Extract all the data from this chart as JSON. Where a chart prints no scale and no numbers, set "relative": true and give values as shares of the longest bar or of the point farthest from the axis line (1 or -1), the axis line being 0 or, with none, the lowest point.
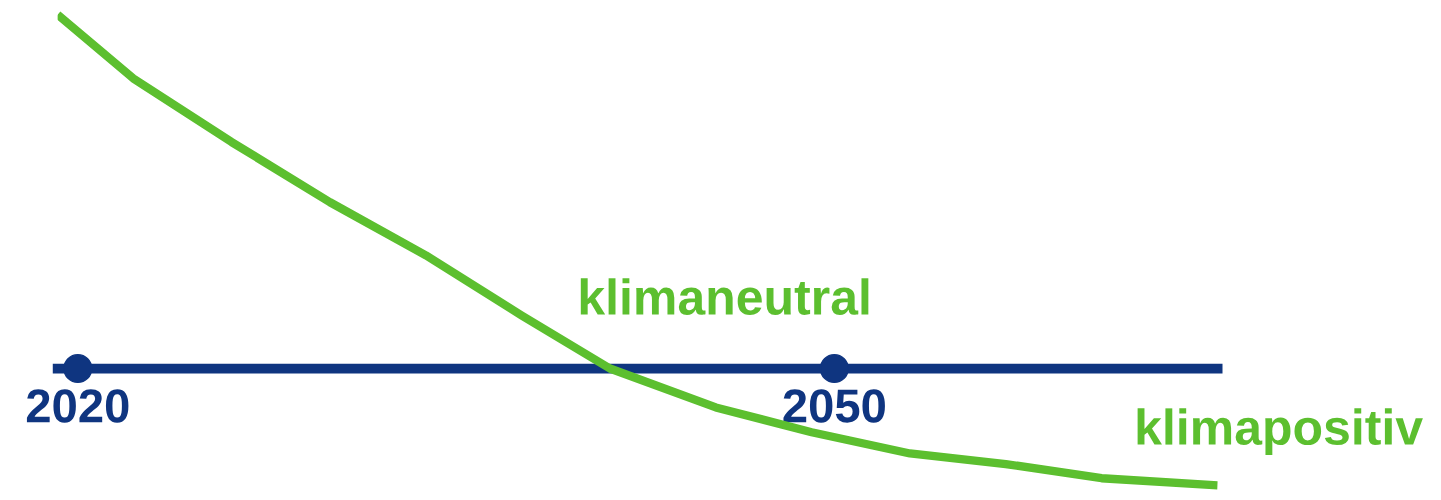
{
  "chart_data": {
    "type": "line",
    "relative": true,
    "x": [
      2019.2,
      2022.2,
      2026.1,
      2030.0,
      2033.8,
      2037.6,
      2041.1,
      2045.3,
      2049.1,
      2053.0,
      2056.8,
      2060.6,
      2065.2
    ],
    "series": [
      {
        "color": "#5cbf2f",
        "values": [
          1.0,
          0.82,
          0.64,
          0.47,
          0.32,
          0.15,
          0.0,
          -0.11,
          -0.18,
          -0.24,
          -0.27,
          -0.31,
          -0.33
        ]
      },
      {
        "type": "scatter",
        "color": "#0f3580",
        "marker": "circle",
        "x": [
          2020,
          2050
        ],
        "values": [
          0,
          0
        ]
      }
    ],
    "xlim": [
      2019.2,
      2065.2
    ],
    "xticks": [
      2020,
      2050
    ],
    "tick_labels": "x",
    "legend": false,
    "marker": "none",
    "line_style": "solid",
    "annotations": [
      "klimaneutral",
      "klimapositiv"
    ]
  }
}
